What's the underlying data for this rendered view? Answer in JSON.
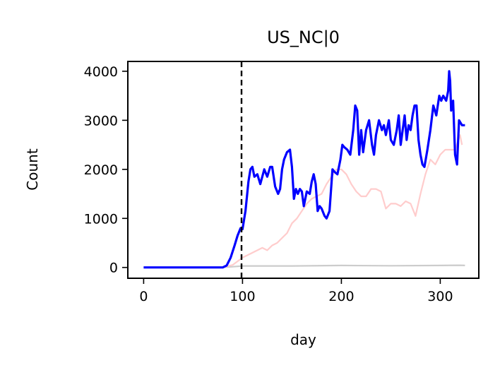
{
  "chart_data": {
    "type": "line",
    "title": "US_NC|0",
    "xlabel": "day",
    "ylabel": "Count",
    "xlim": [
      -16,
      339
    ],
    "ylim": [
      -220,
      4200
    ],
    "xticks": [
      0,
      100,
      200,
      300
    ],
    "yticks": [
      0,
      1000,
      2000,
      3000,
      4000
    ],
    "grid": false,
    "legend": "none",
    "vline": {
      "x": 99,
      "style": "dashed",
      "color": "#000000"
    },
    "series": [
      {
        "color": "#0000ff",
        "x": [
          0,
          10,
          20,
          30,
          40,
          50,
          60,
          70,
          80,
          84,
          88,
          92,
          95,
          98,
          100,
          103,
          106,
          108,
          110,
          112,
          115,
          118,
          122,
          125,
          128,
          130,
          133,
          136,
          138,
          140,
          142,
          145,
          148,
          150,
          152,
          154,
          156,
          158,
          160,
          162,
          165,
          168,
          170,
          172,
          174,
          176,
          178,
          180,
          183,
          185,
          188,
          191,
          193,
          196,
          199,
          201,
          203,
          206,
          209,
          212,
          214,
          216,
          218,
          220,
          222,
          225,
          228,
          231,
          233,
          235,
          238,
          241,
          243,
          245,
          248,
          250,
          253,
          256,
          258,
          260,
          262,
          264,
          266,
          268,
          270,
          272,
          274,
          276,
          278,
          280,
          282,
          284,
          287,
          290,
          293,
          296,
          299,
          301,
          303,
          306,
          308,
          309,
          310,
          311,
          313,
          315,
          317,
          319,
          322,
          325
        ],
        "y": [
          0,
          0,
          0,
          0,
          0,
          0,
          0,
          0,
          0,
          40,
          200,
          450,
          650,
          800,
          780,
          1150,
          1750,
          2000,
          2050,
          1850,
          1900,
          1700,
          2000,
          1850,
          2050,
          2050,
          1650,
          1500,
          1600,
          2000,
          2200,
          2350,
          2400,
          2050,
          1400,
          1600,
          1500,
          1600,
          1550,
          1250,
          1550,
          1500,
          1750,
          1900,
          1700,
          1150,
          1250,
          1200,
          1050,
          1000,
          1150,
          2000,
          1950,
          1900,
          2200,
          2500,
          2450,
          2400,
          2300,
          2800,
          3300,
          3200,
          2300,
          2800,
          2350,
          2800,
          3000,
          2500,
          2300,
          2700,
          3000,
          2800,
          2900,
          2700,
          3000,
          2600,
          2500,
          2800,
          3100,
          2500,
          2800,
          3100,
          2600,
          2900,
          2800,
          3100,
          3300,
          3300,
          2600,
          2300,
          2100,
          2050,
          2400,
          2800,
          3300,
          3100,
          3500,
          3400,
          3500,
          3400,
          3600,
          4000,
          3800,
          3200,
          3400,
          2300,
          2100,
          3000,
          2900,
          2900
        ]
      },
      {
        "color": "#ffcccc",
        "x": [
          80,
          90,
          100,
          105,
          110,
          115,
          120,
          125,
          130,
          135,
          140,
          145,
          150,
          155,
          160,
          165,
          170,
          175,
          180,
          185,
          190,
          195,
          200,
          205,
          210,
          215,
          220,
          225,
          230,
          235,
          240,
          245,
          250,
          255,
          260,
          265,
          270,
          275,
          280,
          285,
          290,
          295,
          300,
          305,
          310,
          315,
          320,
          322
        ],
        "y": [
          0,
          50,
          200,
          250,
          300,
          350,
          400,
          350,
          450,
          500,
          600,
          700,
          900,
          1000,
          1150,
          1300,
          1400,
          1450,
          1500,
          1700,
          1850,
          2000,
          2000,
          1900,
          1700,
          1550,
          1450,
          1450,
          1600,
          1600,
          1550,
          1200,
          1300,
          1300,
          1250,
          1350,
          1300,
          1050,
          1500,
          1900,
          2200,
          2100,
          2300,
          2400,
          2400,
          2400,
          2700,
          2500
        ]
      },
      {
        "color": "#cccccc",
        "x": [
          0,
          50,
          80,
          90,
          100,
          150,
          200,
          250,
          300,
          320,
          325
        ],
        "y": [
          0,
          0,
          5,
          15,
          30,
          30,
          40,
          35,
          40,
          45,
          40
        ]
      }
    ]
  }
}
